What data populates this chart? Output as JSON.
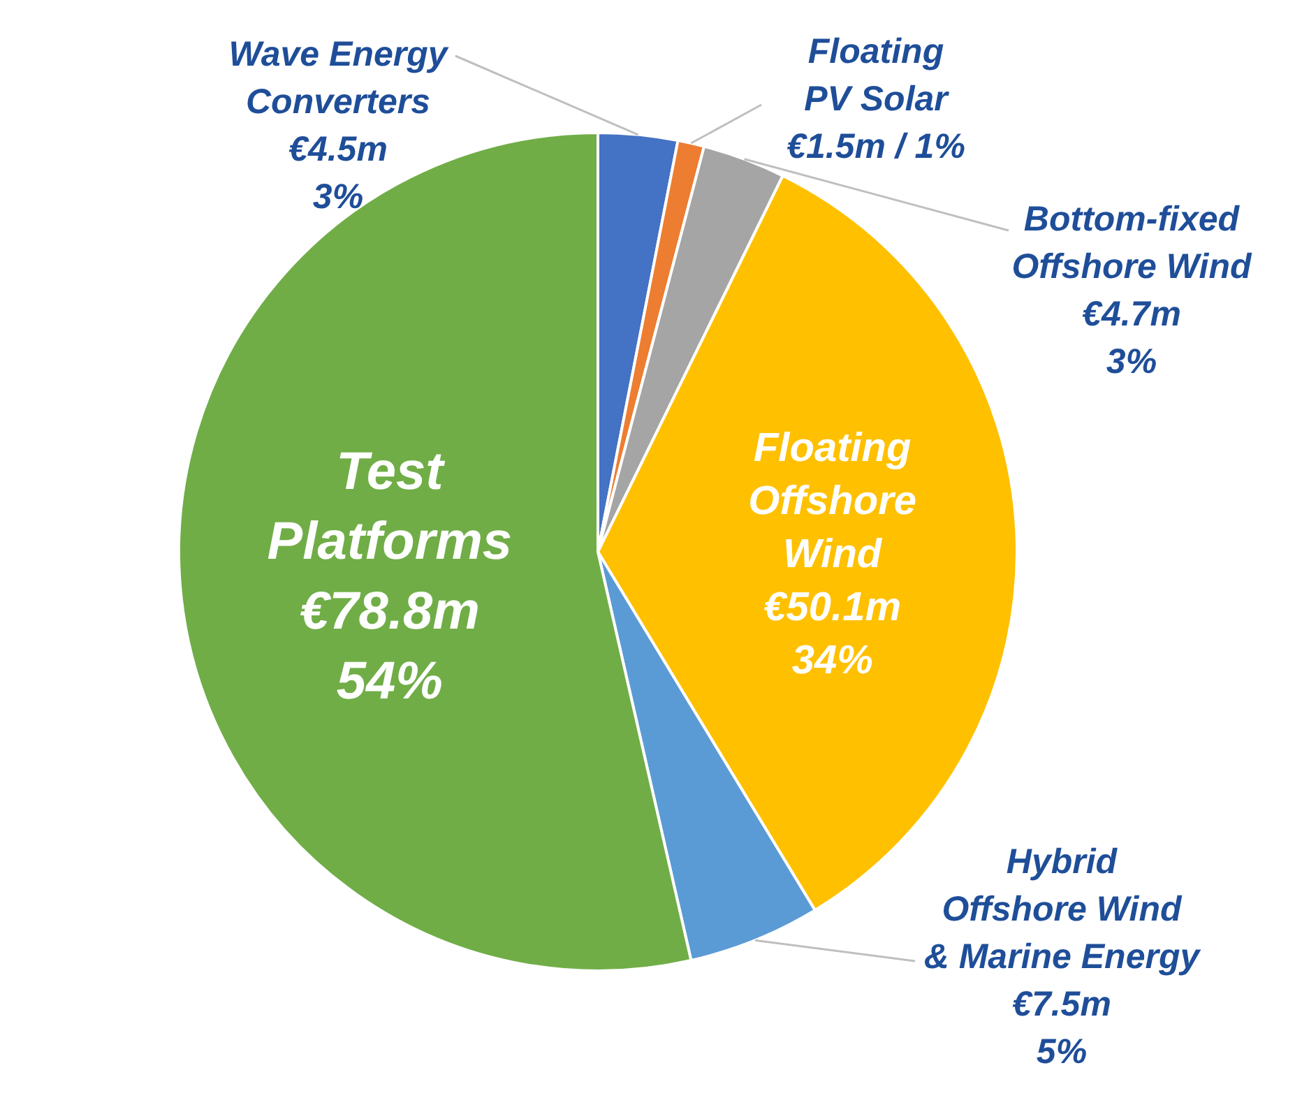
{
  "chart_data": {
    "type": "pie",
    "categories": [
      "Wave Energy\nConverters",
      "Floating\nPV Solar",
      "Bottom-fixed\nOffshore Wind",
      "Floating\nOffshore\nWind",
      "Hybrid\nOffshore Wind\n& Marine Energy",
      "Test\nPlatforms"
    ],
    "values": [
      4.5,
      1.5,
      4.7,
      50.1,
      7.5,
      78.8
    ],
    "value_labels": [
      "€4.5m",
      "€1.5m / 1%",
      "€4.7m",
      "€50.1m",
      "€7.5m",
      "€78.8m"
    ],
    "annotations": [
      {
        "text": "3%",
        "x": "Wave Energy\nConverters"
      },
      {
        "text": "3%",
        "x": "Bottom-fixed\nOffshore Wind"
      },
      {
        "text": "34%",
        "x": "Floating\nOffshore\nWind"
      },
      {
        "text": "5%",
        "x": "Hybrid\nOffshore Wind\n& Marine Energy"
      },
      {
        "text": "54%",
        "x": "Test\nPlatforms"
      }
    ],
    "colors": [
      "#4472c4",
      "#ed7d31",
      "#a5a5a5",
      "#ffc000",
      "#5b9bd5",
      "#70ad47"
    ]
  }
}
